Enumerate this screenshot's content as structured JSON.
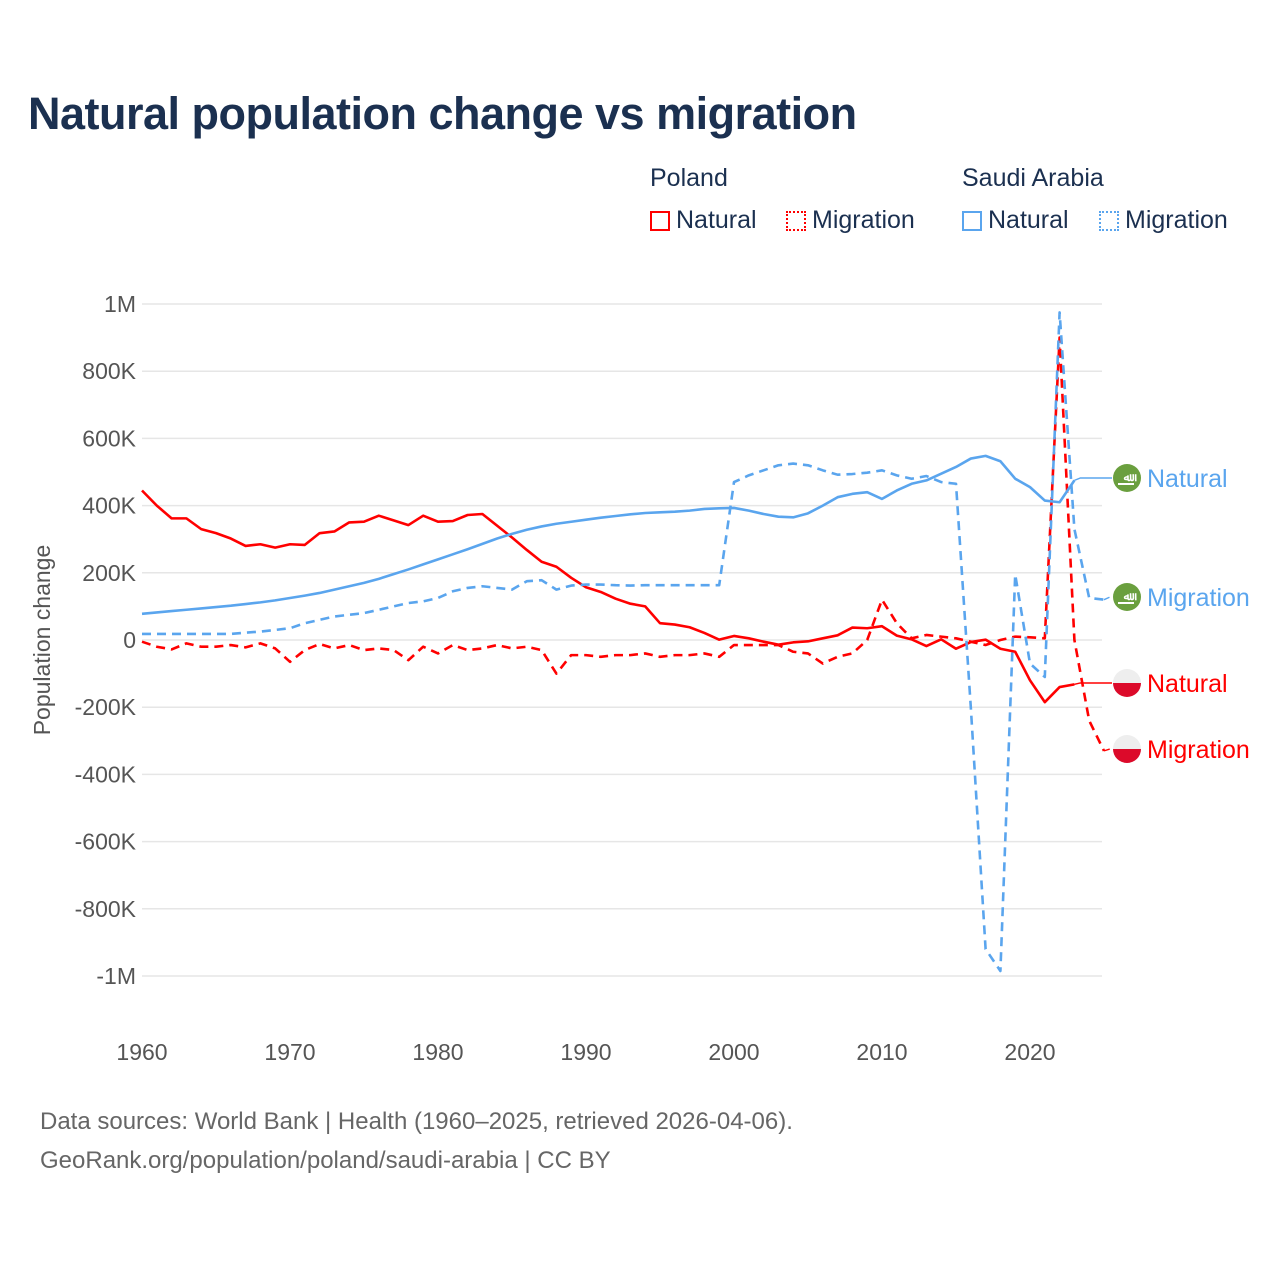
{
  "chart_data": {
    "type": "line",
    "title": "Natural population change vs migration",
    "ylabel": "Population change",
    "xlabel": "",
    "xlim": [
      1960,
      2025
    ],
    "ylim": [
      -1000000,
      1000000
    ],
    "x_ticks": [
      1960,
      1970,
      1980,
      1990,
      2000,
      2010,
      2020
    ],
    "x_tick_labels": [
      "1960",
      "1970",
      "1980",
      "1990",
      "2000",
      "2010",
      "2020"
    ],
    "y_ticks": [
      1000000,
      800000,
      600000,
      400000,
      200000,
      0,
      -200000,
      -400000,
      -600000,
      -800000,
      -1000000
    ],
    "y_tick_labels": [
      "1M",
      "800K",
      "600K",
      "400K",
      "200K",
      "0",
      "-200K",
      "-400K",
      "-600K",
      "-800K",
      "-1M"
    ],
    "grid": true,
    "legend_groups": [
      {
        "name": "Poland",
        "items": [
          "Natural",
          "Migration"
        ]
      },
      {
        "name": "Saudi Arabia",
        "items": [
          "Natural",
          "Migration"
        ]
      }
    ],
    "legend_placement": "top-right",
    "series": [
      {
        "name": "Natural",
        "country": "Poland",
        "color": "#ff0000",
        "dash": false,
        "start": 1960,
        "values_k": [
          445,
          400,
          362,
          362,
          330,
          318,
          302,
          280,
          285,
          275,
          285,
          283,
          318,
          323,
          350,
          352,
          370,
          356,
          342,
          370,
          352,
          354,
          372,
          375,
          340,
          305,
          268,
          233,
          218,
          185,
          157,
          143,
          123,
          108,
          100,
          50,
          46,
          38,
          21,
          1,
          12,
          5,
          -5,
          -14,
          -7,
          -4,
          5,
          14,
          37,
          35,
          41,
          13,
          2,
          -18,
          2,
          -26,
          -6,
          1,
          -26,
          -35,
          -120,
          -185,
          -140,
          -132
        ]
      },
      {
        "name": "Migration",
        "country": "Poland",
        "color": "#ff0000",
        "dash": true,
        "start": 1960,
        "values_k": [
          -5,
          -20,
          -28,
          -10,
          -20,
          -20,
          -15,
          -22,
          -10,
          -25,
          -65,
          -30,
          -12,
          -25,
          -15,
          -30,
          -25,
          -30,
          -60,
          -20,
          -40,
          -15,
          -30,
          -25,
          -15,
          -25,
          -20,
          -30,
          -100,
          -45,
          -45,
          -50,
          -45,
          -45,
          -40,
          -50,
          -45,
          -45,
          -40,
          -50,
          -15,
          -15,
          -15,
          -15,
          -35,
          -40,
          -70,
          -50,
          -40,
          0,
          120,
          50,
          5,
          15,
          10,
          5,
          -5,
          -15,
          0,
          10,
          8,
          5,
          900,
          0,
          -240,
          -330
        ]
      },
      {
        "name": "Natural",
        "country": "Saudi Arabia",
        "color": "#5aa5ee",
        "dash": false,
        "start": 1960,
        "values_k": [
          78,
          82,
          86,
          90,
          94,
          98,
          102,
          107,
          112,
          118,
          125,
          132,
          140,
          150,
          160,
          170,
          182,
          196,
          210,
          225,
          240,
          255,
          270,
          286,
          302,
          316,
          328,
          338,
          346,
          352,
          358,
          364,
          369,
          374,
          378,
          380,
          382,
          385,
          390,
          392,
          393,
          385,
          375,
          367,
          365,
          377,
          400,
          425,
          435,
          440,
          420,
          445,
          465,
          475,
          495,
          515,
          540,
          548,
          532,
          480,
          455,
          415,
          410,
          475
        ]
      },
      {
        "name": "Migration",
        "country": "Saudi Arabia",
        "color": "#5aa5ee",
        "dash": true,
        "start": 1960,
        "values_k": [
          18,
          18,
          18,
          18,
          18,
          18,
          18,
          22,
          25,
          30,
          35,
          50,
          60,
          70,
          75,
          80,
          90,
          100,
          110,
          115,
          125,
          145,
          155,
          160,
          155,
          150,
          175,
          178,
          150,
          162,
          165,
          165,
          163,
          162,
          163,
          163,
          163,
          163,
          163,
          163,
          470,
          490,
          505,
          520,
          525,
          520,
          505,
          492,
          494,
          498,
          505,
          490,
          480,
          488,
          470,
          465,
          -200,
          -920,
          -985,
          195,
          -70,
          -110,
          975,
          330,
          125,
          120
        ]
      }
    ],
    "end_labels": [
      {
        "text": "Natural",
        "country": "Saudi Arabia",
        "flag": "saudi-arabia",
        "color": "#5aa5ee"
      },
      {
        "text": "Migration",
        "country": "Saudi Arabia",
        "flag": "saudi-arabia",
        "color": "#5aa5ee"
      },
      {
        "text": "Natural",
        "country": "Poland",
        "flag": "poland",
        "color": "#ff0000"
      },
      {
        "text": "Migration",
        "country": "Poland",
        "flag": "poland",
        "color": "#ff0000"
      }
    ]
  },
  "footer": {
    "line1": "Data sources: World Bank | Health (1960–2025, retrieved 2026-04-06).",
    "line2": "GeoRank.org/population/poland/saudi-arabia | CC BY"
  }
}
